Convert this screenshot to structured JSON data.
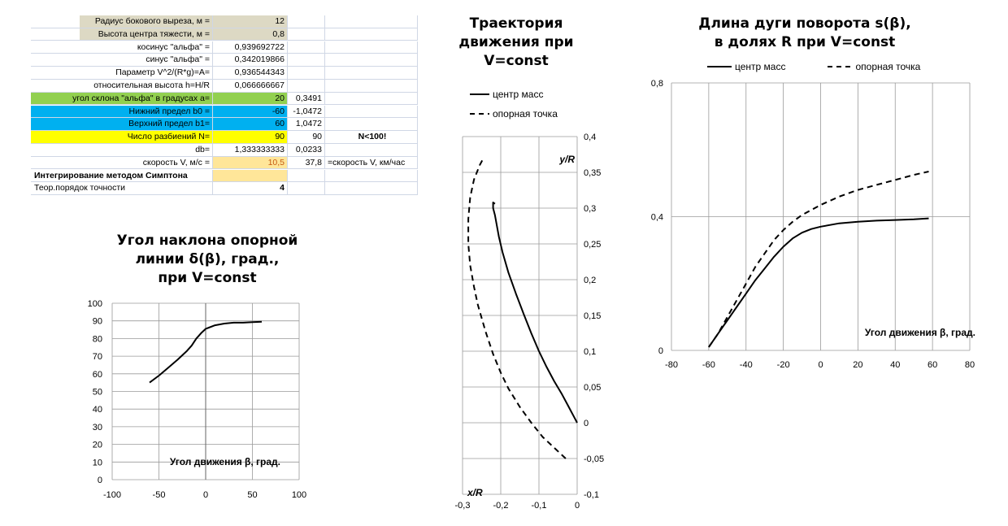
{
  "sheet": {
    "rows": [
      {
        "label": "Радиус бокового выреза, м =",
        "v1": "12",
        "v2": "",
        "v3": "",
        "bg1": "#ddd9c4",
        "bgl": "#ddd9c4"
      },
      {
        "label": "Высота центра тяжести, м =",
        "v1": "0,8",
        "v2": "",
        "v3": "",
        "bg1": "#ddd9c4",
        "bgl": "#ddd9c4"
      },
      {
        "label": "косинус \"альфа\" =",
        "v1": "0,939692722",
        "v2": "",
        "v3": "",
        "bg1": "",
        "bgl": ""
      },
      {
        "label": "синус \"альфа\" =",
        "v1": "0,342019866",
        "v2": "",
        "v3": "",
        "bg1": "",
        "bgl": ""
      },
      {
        "label": "Параметр V^2/(R*g)=A=",
        "v1": "0,936544343",
        "v2": "",
        "v3": "",
        "bg1": "",
        "bgl": ""
      },
      {
        "label": "относительная высота h=H/R",
        "v1": "0,066666667",
        "v2": "",
        "v3": "",
        "bg1": "",
        "bgl": ""
      },
      {
        "label": "угол склона \"альфа\" в градусах а=",
        "v1": "20",
        "v2": "0,3491",
        "v3": "",
        "bg1": "#92d050",
        "bgl": "#92d050"
      },
      {
        "label": "Нижний предел b0 =",
        "v1": "-60",
        "v2": "-1,0472",
        "v3": "",
        "bg1": "#00b0f0",
        "bgl": "#00b0f0"
      },
      {
        "label": "Верхний предел b1=",
        "v1": "60",
        "v2": "1,0472",
        "v3": "",
        "bg1": "#00b0f0",
        "bgl": "#00b0f0"
      },
      {
        "label": "Число разбиений N=",
        "v1": "90",
        "v2": "90",
        "v3": "N<100!",
        "bg1": "#ffff00",
        "bgl": "#ffff00"
      },
      {
        "label": "db=",
        "v1": "1,333333333",
        "v2": "0,0233",
        "v3": "",
        "bg1": "",
        "bgl": ""
      },
      {
        "label": "скорость V, м/с =",
        "v1": "10,5",
        "v2": "37,8",
        "v3": "=скорость V, км/час",
        "bg1": "#ffe699",
        "bgl": ""
      },
      {
        "label": "Интегрирование методом Симптона",
        "v1": "",
        "v2": "",
        "v3": "",
        "bg1": "#ffe699",
        "bgl": "",
        "bold": true,
        "left": true
      },
      {
        "label": "Теор.порядок точности",
        "v1": "4",
        "v2": "",
        "v3": "",
        "bg1": "",
        "bgl": "",
        "left": true,
        "boldv": true
      }
    ]
  },
  "chart_data": [
    {
      "type": "line",
      "title": [
        "Угол наклона опорной",
        "линии δ(β), град.,",
        "при V=const"
      ],
      "xlabel": "Угол движения β, град.",
      "xlim": [
        -100,
        100
      ],
      "ylim": [
        0,
        100
      ],
      "xticks": [
        "-100",
        "-50",
        "0",
        "50",
        "100"
      ],
      "yticks": [
        "0",
        "10",
        "20",
        "30",
        "40",
        "50",
        "60",
        "70",
        "80",
        "90",
        "100"
      ],
      "series": [
        {
          "x": [
            -60,
            -50,
            -40,
            -30,
            -20,
            -15,
            -10,
            -5,
            0,
            10,
            20,
            30,
            40,
            50,
            60
          ],
          "y": [
            55,
            59,
            63.5,
            68,
            73,
            76,
            80,
            83,
            85.5,
            87.5,
            88.5,
            89,
            89,
            89.3,
            89.5
          ]
        }
      ]
    },
    {
      "type": "line",
      "title": [
        "Траектория",
        "движения при",
        "V=const"
      ],
      "xlabel": "x/R",
      "ylabel": "y/R",
      "xlim": [
        -0.3,
        0
      ],
      "ylim": [
        -0.1,
        0.4
      ],
      "xticks": [
        "-0,3",
        "-0,2",
        "-0,1",
        "0"
      ],
      "yticks": [
        "-0,1",
        "-0,05",
        "0",
        "0,05",
        "0,1",
        "0,15",
        "0,2",
        "0,25",
        "0,3",
        "0,35",
        "0,4"
      ],
      "legend": [
        "центр масс",
        "опорная точка"
      ],
      "series": [
        {
          "name": "центр масс",
          "x": [
            0,
            -0.01,
            -0.025,
            -0.04,
            -0.06,
            -0.08,
            -0.1,
            -0.12,
            -0.14,
            -0.16,
            -0.18,
            -0.195,
            -0.205,
            -0.21,
            -0.215,
            -0.22,
            -0.22,
            -0.215
          ],
          "y": [
            0,
            0.01,
            0.025,
            0.04,
            0.058,
            0.078,
            0.1,
            0.125,
            0.152,
            0.18,
            0.21,
            0.238,
            0.26,
            0.275,
            0.29,
            0.3,
            0.308,
            0.306
          ]
        },
        {
          "name": "опорная точка",
          "x": [
            -0.03,
            -0.06,
            -0.09,
            -0.12,
            -0.15,
            -0.18,
            -0.2,
            -0.22,
            -0.24,
            -0.26,
            -0.27,
            -0.28,
            -0.285,
            -0.285,
            -0.28,
            -0.27,
            -0.255,
            -0.245
          ],
          "y": [
            -0.05,
            -0.035,
            -0.02,
            0,
            0.022,
            0.048,
            0.07,
            0.096,
            0.128,
            0.165,
            0.19,
            0.22,
            0.25,
            0.285,
            0.315,
            0.34,
            0.36,
            0.37
          ]
        }
      ]
    },
    {
      "type": "line",
      "title": [
        "Длина дуги поворота s(β),",
        "в долях R при V=const"
      ],
      "xlabel": "Угол движения β, град.",
      "xlim": [
        -80,
        80
      ],
      "ylim": [
        0,
        0.8
      ],
      "xticks": [
        "-80",
        "-60",
        "-40",
        "-20",
        "0",
        "20",
        "40",
        "60",
        "80"
      ],
      "yticks": [
        "0",
        "0,4",
        "0,8"
      ],
      "legend": [
        "центр масс",
        "опорная точка"
      ],
      "series": [
        {
          "name": "центр масс",
          "x": [
            -60,
            -55,
            -50,
            -45,
            -40,
            -35,
            -30,
            -25,
            -20,
            -15,
            -10,
            -5,
            0,
            10,
            20,
            30,
            40,
            50,
            58
          ],
          "y": [
            0.01,
            0.05,
            0.09,
            0.13,
            0.17,
            0.21,
            0.245,
            0.28,
            0.31,
            0.335,
            0.352,
            0.363,
            0.37,
            0.38,
            0.385,
            0.388,
            0.39,
            0.392,
            0.395
          ]
        },
        {
          "name": "опорная точка",
          "x": [
            -60,
            -55,
            -50,
            -45,
            -40,
            -35,
            -30,
            -25,
            -20,
            -15,
            -10,
            -5,
            0,
            10,
            20,
            30,
            40,
            50,
            58
          ],
          "y": [
            0.01,
            0.05,
            0.1,
            0.15,
            0.2,
            0.25,
            0.29,
            0.33,
            0.36,
            0.385,
            0.405,
            0.42,
            0.435,
            0.46,
            0.48,
            0.495,
            0.51,
            0.525,
            0.535
          ]
        }
      ]
    }
  ]
}
